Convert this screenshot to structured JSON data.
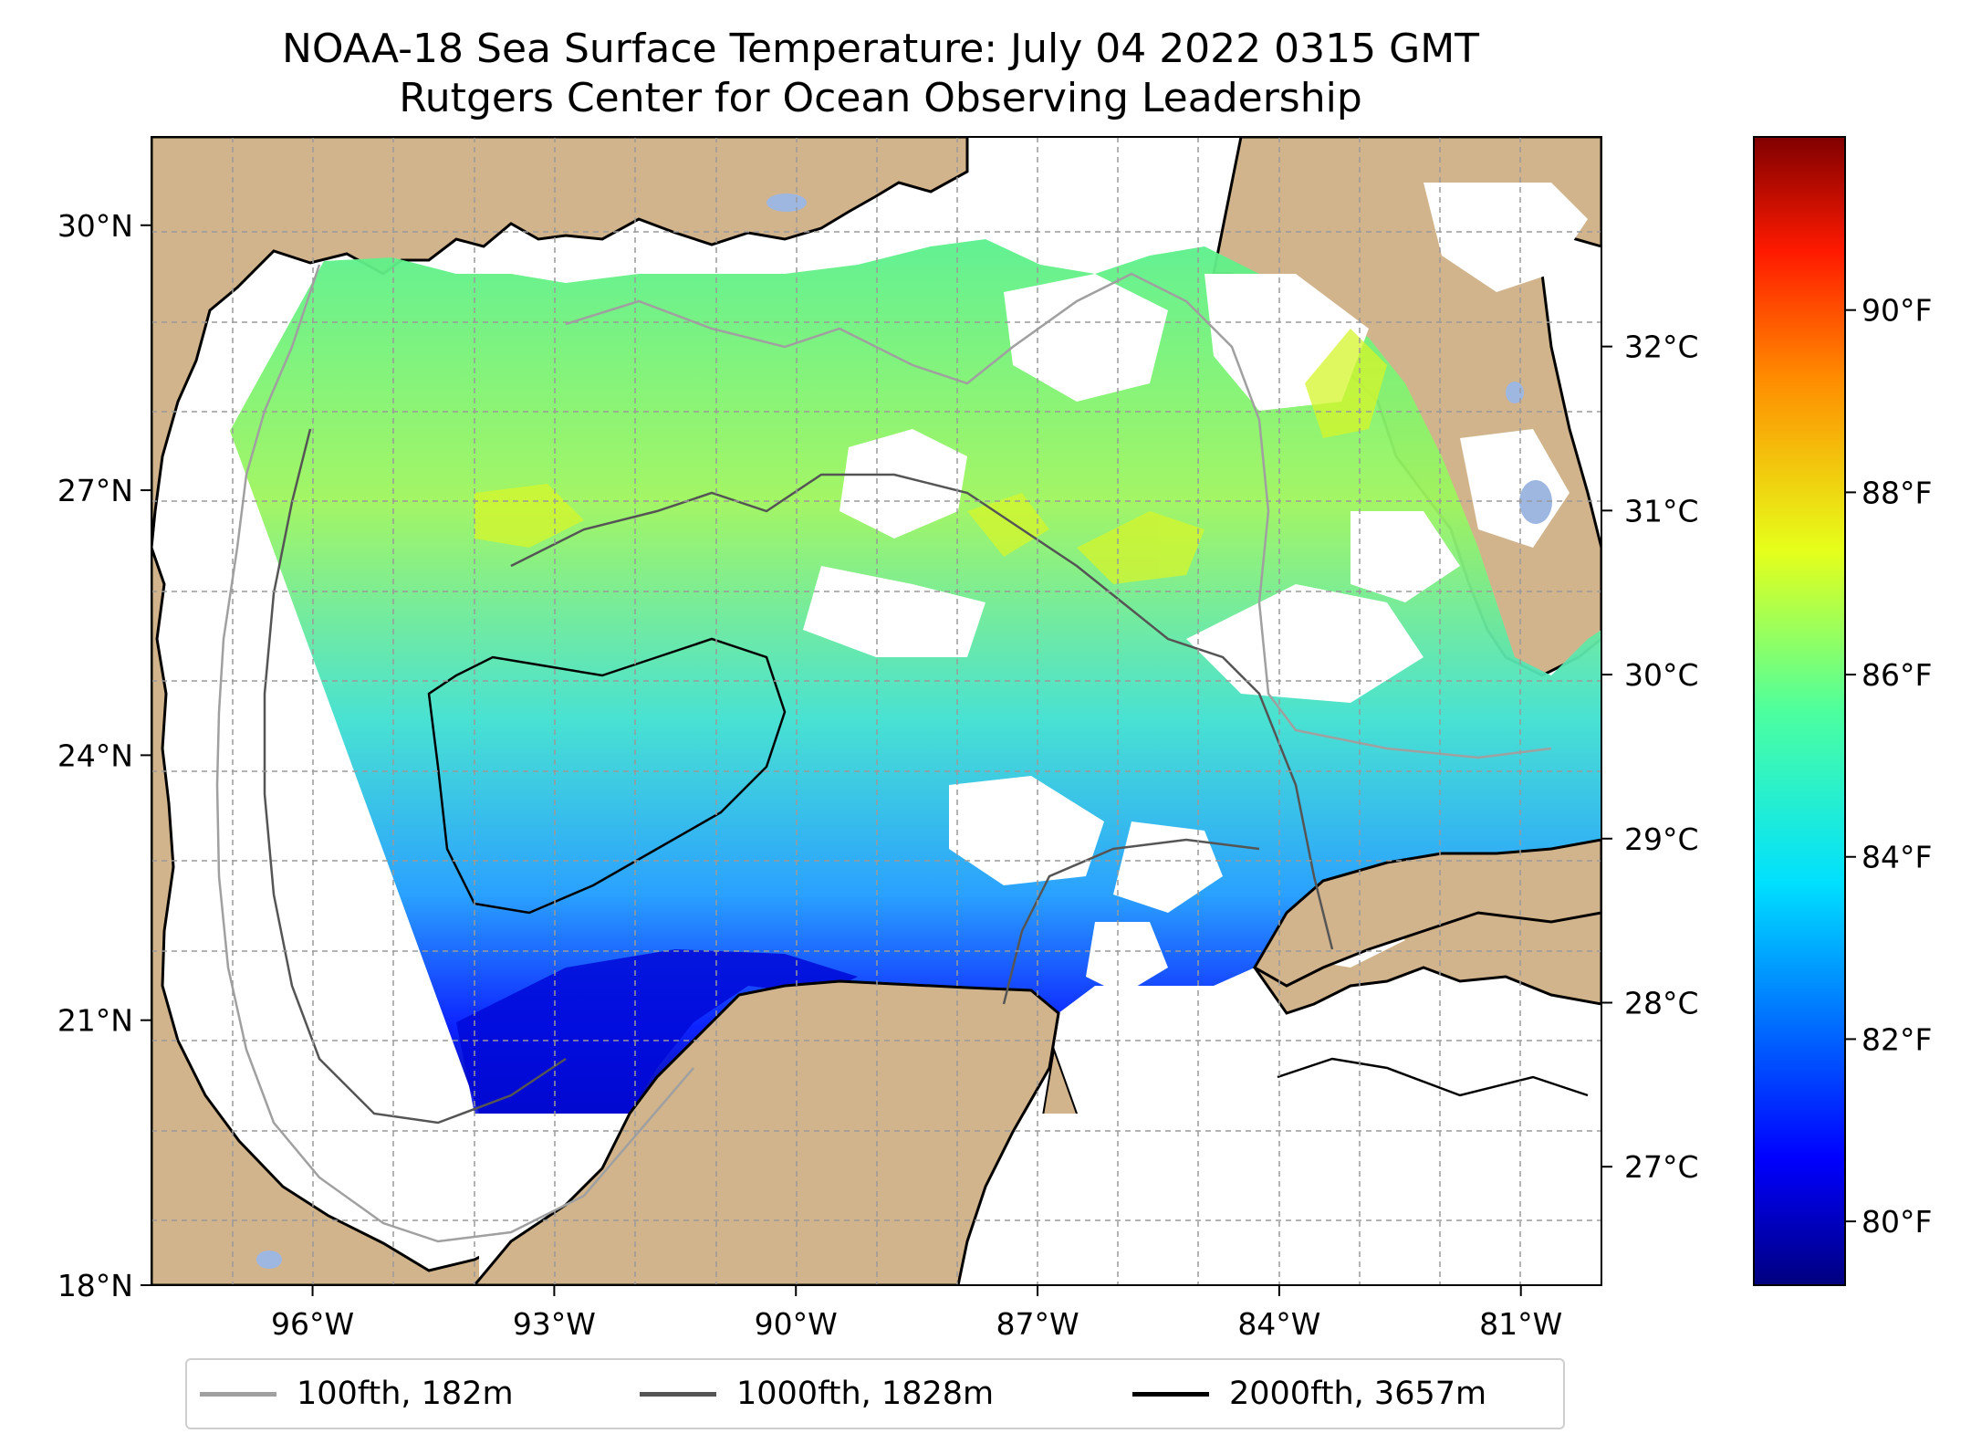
{
  "title": {
    "line1": "NOAA-18 Sea Surface Temperature: July 04 2022 0315 GMT",
    "line2": "Rutgers Center for Ocean Observing Leadership"
  },
  "map": {
    "lon_range": [
      -98.0,
      -80.0
    ],
    "lat_range": [
      18.0,
      31.0
    ],
    "lon_ticks": [
      "96°W",
      "93°W",
      "90°W",
      "87°W",
      "84°W",
      "81°W"
    ],
    "lon_tick_values": [
      -96,
      -93,
      -90,
      -87,
      -84,
      -81
    ],
    "lat_ticks": [
      "30°N",
      "27°N",
      "24°N",
      "21°N",
      "18°N"
    ],
    "lat_tick_values": [
      30,
      27,
      24,
      21,
      18
    ],
    "gridlines": true,
    "colors": {
      "land": "#d2b48c",
      "lakes": "#9db7e1",
      "no_data": "#ffffff"
    }
  },
  "colorbar": {
    "colormap": "jet",
    "celsius_ticks": [
      "27°C",
      "28°C",
      "29°C",
      "30°C",
      "31°C",
      "32°C"
    ],
    "fahrenheit_ticks": [
      "80°F",
      "82°F",
      "84°F",
      "86°F",
      "88°F",
      "90°F"
    ],
    "range_f": [
      79.3,
      91.9
    ]
  },
  "legend": {
    "items": [
      {
        "label": "100fth, 182m",
        "color": "#a0a0a0"
      },
      {
        "label": "1000fth, 1828m",
        "color": "#555555"
      },
      {
        "label": "2000fth, 3657m",
        "color": "#000000"
      }
    ]
  }
}
